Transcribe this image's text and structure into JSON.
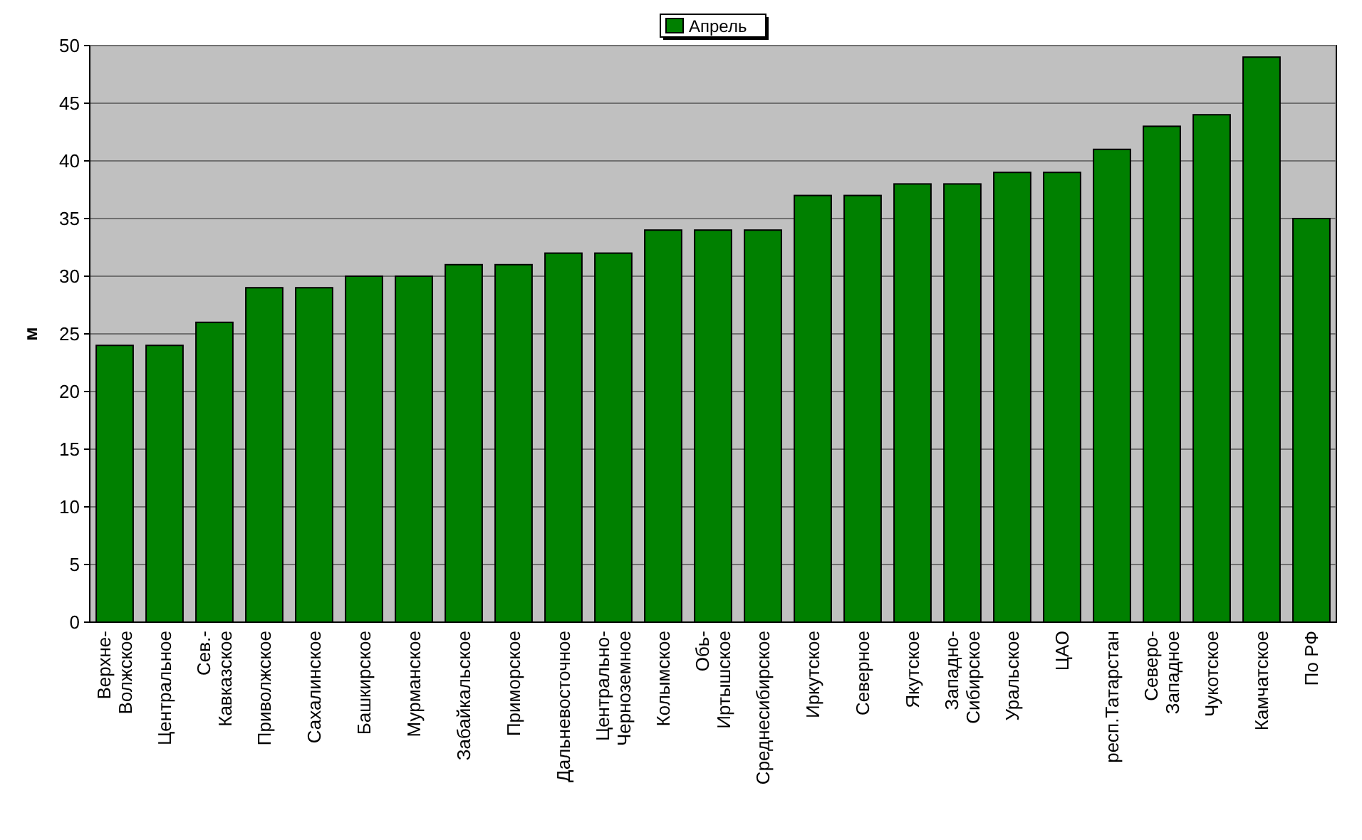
{
  "chart_data": {
    "type": "bar",
    "ylabel": "м",
    "categories": [
      "Верхне-\nВолжское",
      "Центральное",
      "Сев.-\nКавказское",
      "Приволжское",
      "Сахалинское",
      "Башкирское",
      "Мурманское",
      "Забайкальское",
      "Приморское",
      "Дальневосточное",
      "Центрально-\nЧерноземное",
      "Колымское",
      "Обь-\nИртышское",
      "Среднесибирское",
      "Иркутское",
      "Северное",
      "Якутское",
      "Западно-\nСибирское",
      "Уральское",
      "ЦАО",
      "респ.Татарстан",
      "Северо-\nЗападное",
      "Чукотское",
      "Камчатское",
      "По РФ"
    ],
    "series": [
      {
        "name": "Апрель",
        "color": "#008000",
        "values": [
          24,
          24,
          26,
          29,
          29,
          30,
          30,
          31,
          31,
          32,
          32,
          34,
          34,
          34,
          37,
          37,
          38,
          38,
          39,
          39,
          41,
          43,
          44,
          49,
          35
        ]
      }
    ],
    "ylim": [
      0,
      50
    ],
    "yticks": [
      0,
      5,
      10,
      15,
      20,
      25,
      30,
      35,
      40,
      45,
      50
    ],
    "grid": "y",
    "legend": "top"
  }
}
